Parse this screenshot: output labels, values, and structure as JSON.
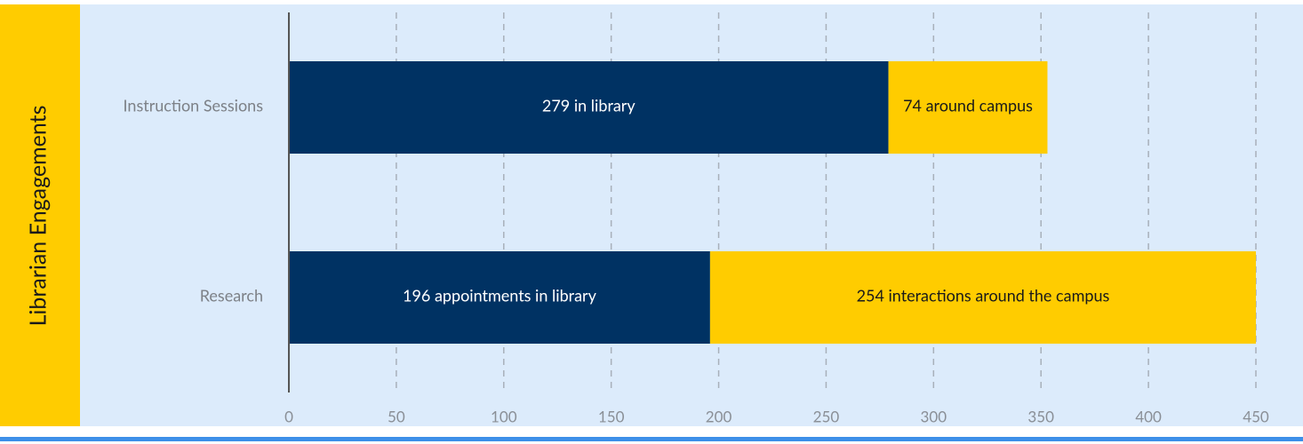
{
  "chart_data": {
    "type": "stacked-bar-horizontal",
    "title": "Librarian Engagements",
    "categories": [
      "Instruction Sessions",
      "Research"
    ],
    "series": [
      {
        "color": "#003263",
        "values": [
          279,
          196
        ],
        "value_labels": [
          "279 in library",
          "196 appointments in library"
        ]
      },
      {
        "color": "#ffcc00",
        "values": [
          74,
          254
        ],
        "value_labels": [
          "74 around campus",
          "254 interactions around the campus"
        ]
      }
    ],
    "xlim": [
      0,
      450
    ],
    "xticks": [
      0,
      50,
      100,
      150,
      200,
      250,
      300,
      350,
      400,
      450
    ],
    "grid": true
  }
}
